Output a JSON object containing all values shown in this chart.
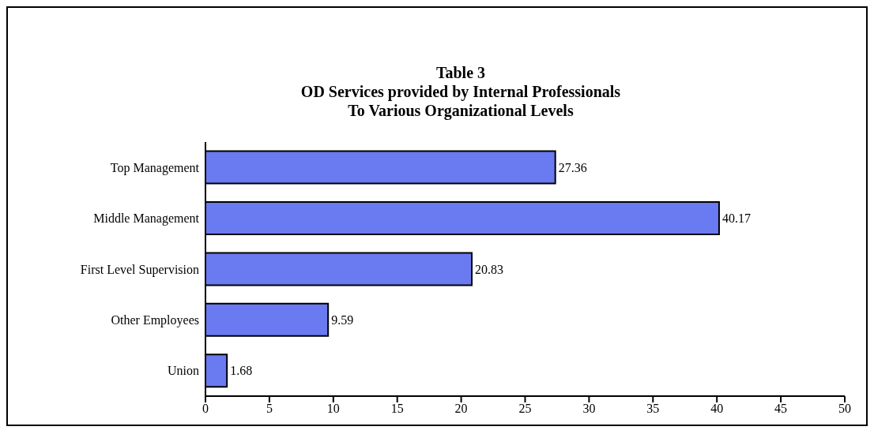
{
  "chart_data": {
    "type": "bar",
    "orientation": "horizontal",
    "title": "Table 3\nOD Services provided by Internal Professionals\nTo Various Organizational Levels",
    "categories": [
      "Top Management",
      "Middle Management",
      "First Level Supervision",
      "Other Employees",
      "Union"
    ],
    "values": [
      27.36,
      40.17,
      20.83,
      9.59,
      1.68
    ],
    "color": "#6a7af0",
    "xlim": [
      0,
      50
    ],
    "xticks": [
      0,
      5,
      10,
      15,
      20,
      25,
      30,
      35,
      40,
      45,
      50
    ],
    "grid": false,
    "data_labels": true
  }
}
